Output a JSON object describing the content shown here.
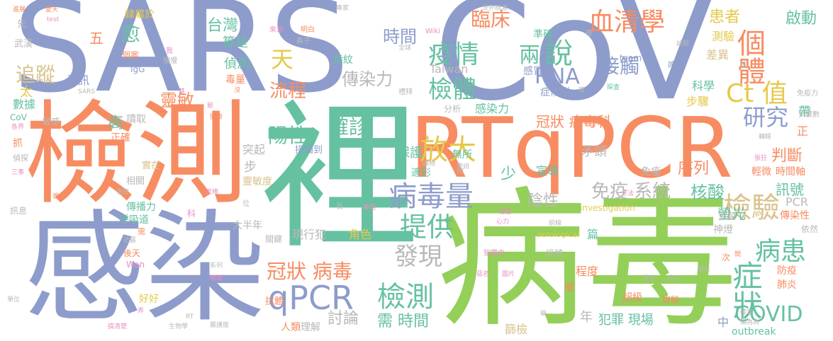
{
  "palette": {
    "blue": "#8d9ccb",
    "green": "#94cf5a",
    "orange": "#f78c62",
    "teal": "#66c1a1",
    "yellow": "#e5c94a",
    "tan": "#d8c38c",
    "pink": "#e88fc2",
    "gray": "#b8b8b8"
  },
  "words": [
    {
      "text": "SARS",
      "color": "blue"
    },
    {
      "text": "CoV",
      "color": "blue"
    },
    {
      "text": "檢測",
      "color": "orange"
    },
    {
      "text": "裡",
      "color": "teal"
    },
    {
      "text": "感染",
      "color": "blue"
    },
    {
      "text": "病毒",
      "color": "green"
    },
    {
      "text": "RTqPCR",
      "color": "orange"
    },
    {
      "text": "血清學",
      "color": "orange"
    },
    {
      "text": "個體",
      "color": "orange"
    },
    {
      "text": "Ct 值",
      "color": "yellow"
    },
    {
      "text": "研究",
      "color": "blue"
    },
    {
      "text": "症狀",
      "color": "teal"
    },
    {
      "text": "病患",
      "color": "teal"
    },
    {
      "text": "檢驗",
      "color": "tan"
    },
    {
      "text": "COVID",
      "color": "teal"
    },
    {
      "text": "qPCR",
      "color": "blue"
    },
    {
      "text": "檢測",
      "color": "teal"
    },
    {
      "text": "病毒量",
      "color": "blue"
    },
    {
      "text": "提供",
      "color": "teal"
    },
    {
      "text": "發現",
      "color": "gray"
    },
    {
      "text": "疫情",
      "color": "teal"
    },
    {
      "text": "檢體",
      "color": "teal"
    },
    {
      "text": "放大",
      "color": "yellow"
    },
    {
      "text": "確診",
      "color": "teal"
    },
    {
      "text": "陽性",
      "color": "teal"
    },
    {
      "text": "流程",
      "color": "orange"
    },
    {
      "text": "傳染力",
      "color": "gray"
    },
    {
      "text": "RNA",
      "color": "blue"
    },
    {
      "text": "接觸",
      "color": "blue"
    },
    {
      "text": "臨床",
      "color": "orange"
    },
    {
      "text": "時間",
      "color": "blue"
    },
    {
      "text": "說",
      "color": "teal"
    },
    {
      "text": "兩",
      "color": "teal"
    },
    {
      "text": "天",
      "color": "yellow"
    },
    {
      "text": "愈",
      "color": "teal"
    },
    {
      "text": "五",
      "color": "orange"
    },
    {
      "text": "台灣",
      "color": "teal"
    },
    {
      "text": "算是",
      "color": "teal"
    },
    {
      "text": "偵測",
      "color": "teal"
    },
    {
      "text": "毒量",
      "color": "orange"
    },
    {
      "text": "追蹤",
      "color": "tan"
    },
    {
      "text": "靈敏",
      "color": "orange"
    },
    {
      "text": "高",
      "color": "teal"
    },
    {
      "text": "冠狀 病毒",
      "color": "orange"
    },
    {
      "text": "冠狀 病毒科",
      "color": "orange"
    },
    {
      "text": "序列",
      "color": "orange"
    },
    {
      "text": "判斷",
      "color": "orange"
    },
    {
      "text": "免疫 系統",
      "color": "gray"
    },
    {
      "text": "核酸",
      "color": "teal"
    },
    {
      "text": "陰性",
      "color": "gray"
    },
    {
      "text": "少",
      "color": "teal"
    },
    {
      "text": "患者",
      "color": "yellow"
    },
    {
      "text": "啟動",
      "color": "teal"
    },
    {
      "text": "螢光",
      "color": "teal"
    },
    {
      "text": "訊號",
      "color": "teal"
    },
    {
      "text": "討論",
      "color": "gray"
    },
    {
      "text": "需 時間",
      "color": "teal"
    },
    {
      "text": "數據",
      "color": "teal"
    },
    {
      "text": "資訊",
      "color": "blue"
    },
    {
      "text": "太",
      "color": "yellow"
    },
    {
      "text": "宣導",
      "color": "teal"
    },
    {
      "text": "矛頭",
      "color": "gray"
    },
    {
      "text": "保護",
      "color": "teal"
    },
    {
      "text": "年",
      "color": "gray"
    },
    {
      "text": "犯罪 現場",
      "color": "teal"
    },
    {
      "text": "篩檢",
      "color": "tan"
    },
    {
      "text": "讀取",
      "color": "gray"
    },
    {
      "text": "突起",
      "color": "gray"
    },
    {
      "text": "步",
      "color": "gray"
    },
    {
      "text": "正確",
      "color": "orange"
    },
    {
      "text": "好好",
      "color": "yellow"
    },
    {
      "text": "呼吸道",
      "color": "teal"
    },
    {
      "text": "傳播力",
      "color": "teal"
    },
    {
      "text": "現行犯",
      "color": "gray"
    },
    {
      "text": "大半年",
      "color": "gray"
    },
    {
      "text": "角色",
      "color": "yellow"
    },
    {
      "text": "靈敏度",
      "color": "tan"
    },
    {
      "text": "相關",
      "color": "gray"
    },
    {
      "text": "實在",
      "color": "tan"
    },
    {
      "text": "感染力",
      "color": "teal"
    },
    {
      "text": "分析",
      "color": "gray"
    },
    {
      "text": "症候群",
      "color": "blue"
    },
    {
      "text": "感冒",
      "color": "blue"
    },
    {
      "text": "科學",
      "color": "teal"
    },
    {
      "text": "步驟",
      "color": "yellow"
    },
    {
      "text": "測驗",
      "color": "yellow"
    },
    {
      "text": "差異",
      "color": "tan"
    },
    {
      "text": "嗅出",
      "color": "blue"
    },
    {
      "text": "準確",
      "color": "teal"
    },
    {
      "text": "指紋",
      "color": "teal"
    },
    {
      "text": "Taiwan",
      "color": "gray"
    },
    {
      "text": "IgG",
      "color": "blue"
    },
    {
      "text": "個案",
      "color": "orange"
    },
    {
      "text": "武漢",
      "color": "gray"
    },
    {
      "text": "先",
      "color": "gray"
    },
    {
      "text": "隸屬於",
      "color": "yellow"
    },
    {
      "text": "PCR",
      "color": "gray"
    },
    {
      "text": "傳染性",
      "color": "orange"
    },
    {
      "text": "神燈",
      "color": "gray"
    },
    {
      "text": "假設",
      "color": "gray"
    },
    {
      "text": "肺炎",
      "color": "orange"
    },
    {
      "text": "防疫",
      "color": "orange"
    },
    {
      "text": "輕微",
      "color": "orange"
    },
    {
      "text": "時間軸",
      "color": "orange"
    },
    {
      "text": "免疫",
      "color": "gray"
    },
    {
      "text": "無所",
      "color": "teal"
    },
    {
      "text": "適形",
      "color": "teal"
    },
    {
      "text": "程度",
      "color": "orange"
    },
    {
      "text": "超級",
      "color": "orange"
    },
    {
      "text": "實驗",
      "color": "orange"
    },
    {
      "text": "理解",
      "color": "gray"
    },
    {
      "text": "人類",
      "color": "orange"
    },
    {
      "text": "中",
      "color": "blue"
    },
    {
      "text": "outbreak",
      "color": "teal"
    },
    {
      "text": "抗體",
      "color": "orange"
    },
    {
      "text": "關鍵",
      "color": "gray"
    },
    {
      "text": "訊號",
      "color": "gray"
    },
    {
      "text": "篇",
      "color": "teal"
    },
    {
      "text": "喔",
      "color": "orange"
    },
    {
      "text": "帶",
      "color": "teal"
    },
    {
      "text": "正",
      "color": "orange"
    },
    {
      "text": "次",
      "color": "orange"
    },
    {
      "text": "依然",
      "color": "gray"
    },
    {
      "text": "investigation",
      "color": "yellow"
    },
    {
      "text": "serological",
      "color": "yellow"
    },
    {
      "text": "team",
      "color": "blue"
    },
    {
      "text": "Wiki",
      "color": "pink"
    },
    {
      "text": "世外桃源",
      "color": "gray"
    },
    {
      "text": "專家",
      "color": "gray"
    },
    {
      "text": "全球",
      "color": "gray"
    },
    {
      "text": "鼻子",
      "color": "gray"
    },
    {
      "text": "明白",
      "color": "orange"
    },
    {
      "text": "來源",
      "color": "pink"
    },
    {
      "text": "我",
      "color": "pink"
    },
    {
      "text": "慢慢",
      "color": "gray"
    },
    {
      "text": "學",
      "color": "gray"
    },
    {
      "text": "試驗",
      "color": "gray"
    },
    {
      "text": "低",
      "color": "gray"
    },
    {
      "text": "免疫力",
      "color": "gray"
    },
    {
      "text": "步驟數",
      "color": "gray"
    },
    {
      "text": "轉眼",
      "color": "gray"
    },
    {
      "text": "張狂",
      "color": "pink"
    },
    {
      "text": "昭彰",
      "color": "gray"
    },
    {
      "text": "分子",
      "color": "gray"
    },
    {
      "text": "過往",
      "color": "gray"
    },
    {
      "text": "疫苗",
      "color": "pink"
    },
    {
      "text": "犯罪史",
      "color": "pink"
    },
    {
      "text": "惡名",
      "color": "pink"
    },
    {
      "text": "圖片",
      "color": "pink"
    },
    {
      "text": "稱",
      "color": "gray"
    },
    {
      "text": "RT",
      "color": "gray"
    },
    {
      "text": "生物學",
      "color": "gray"
    },
    {
      "text": "嚴謹度",
      "color": "gray"
    },
    {
      "text": "搞清楚",
      "color": "pink"
    },
    {
      "text": "單位",
      "color": "gray"
    },
    {
      "text": "Wan",
      "color": "pink"
    },
    {
      "text": "CoV",
      "color": "teal"
    },
    {
      "text": "各界",
      "color": "pink"
    },
    {
      "text": "抓",
      "color": "orange"
    },
    {
      "text": "敏感",
      "color": "gray"
    },
    {
      "text": "偵探",
      "color": "gray"
    },
    {
      "text": "三事",
      "color": "pink"
    },
    {
      "text": "訊息",
      "color": "gray"
    },
    {
      "text": "SARS",
      "color": "gray"
    },
    {
      "text": "test",
      "color": "pink"
    },
    {
      "text": "夏天",
      "color": "orange"
    },
    {
      "text": "進展",
      "color": "orange"
    },
    {
      "text": "接觸到",
      "color": "blue"
    },
    {
      "text": "開發",
      "color": "orange"
    },
    {
      "text": "沒",
      "color": "orange"
    },
    {
      "text": "禮拜",
      "color": "gray"
    },
    {
      "text": "常",
      "color": "gray"
    },
    {
      "text": "探查",
      "color": "teal"
    },
    {
      "text": "藥物",
      "color": "gray"
    },
    {
      "text": "警訊",
      "color": "gray"
    },
    {
      "text": "狗",
      "color": "gray"
    },
    {
      "text": "方法",
      "color": "pink"
    },
    {
      "text": "前線",
      "color": "gray"
    },
    {
      "text": "心力",
      "color": "pink"
    },
    {
      "text": "專題",
      "color": "pink"
    },
    {
      "text": "長",
      "color": "gray"
    },
    {
      "text": "位",
      "color": "gray"
    },
    {
      "text": "系列",
      "color": "gray"
    },
    {
      "text": "聽聞",
      "color": "pink"
    },
    {
      "text": "事情",
      "color": "gray"
    },
    {
      "text": "透露",
      "color": "gray"
    },
    {
      "text": "後天",
      "color": "orange"
    },
    {
      "text": "需",
      "color": "orange"
    },
    {
      "text": "首",
      "color": "orange"
    },
    {
      "text": "科",
      "color": "pink"
    },
    {
      "text": "席捲",
      "color": "pink"
    },
    {
      "text": "弄",
      "color": "pink"
    },
    {
      "text": "基",
      "color": "pink"
    },
    {
      "text": "節",
      "color": "pink"
    },
    {
      "text": "確定",
      "color": "gray"
    },
    {
      "text": "稱為為",
      "color": "gray"
    },
    {
      "text": "間",
      "color": "orange"
    },
    {
      "text": "皆",
      "color": "gray"
    }
  ]
}
